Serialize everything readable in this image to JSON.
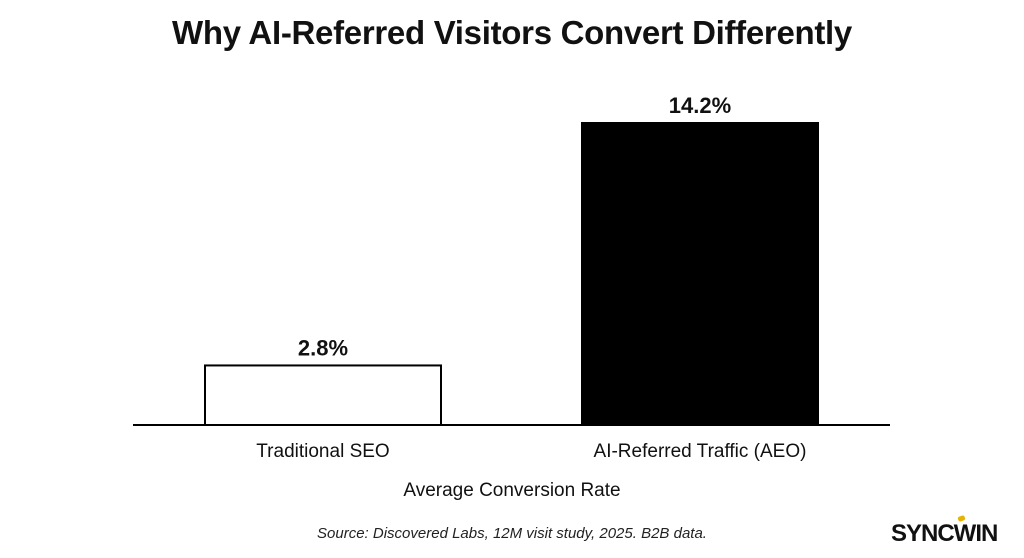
{
  "chart_data": {
    "type": "bar",
    "title": "Why AI-Referred Visitors Convert Differently",
    "categories": [
      "Traditional SEO",
      "AI-Referred Traffic (AEO)"
    ],
    "values": [
      2.8,
      14.2
    ],
    "value_labels": [
      "2.8%",
      "14.2%"
    ],
    "bar_fills": [
      "#ffffff",
      "#000000"
    ],
    "bar_strokes": [
      "#000000",
      "#000000"
    ],
    "xlabel": "Average Conversion Rate",
    "ylabel": "",
    "ylim": [
      0,
      14.2
    ],
    "grid": false,
    "legend": "none"
  },
  "footer": {
    "source": "Source: Discovered Labs, 12M visit study, 2025. B2B data.",
    "logo": "SYNCWIN"
  },
  "colors": {
    "text": "#111111",
    "accent": "#e6b400"
  }
}
